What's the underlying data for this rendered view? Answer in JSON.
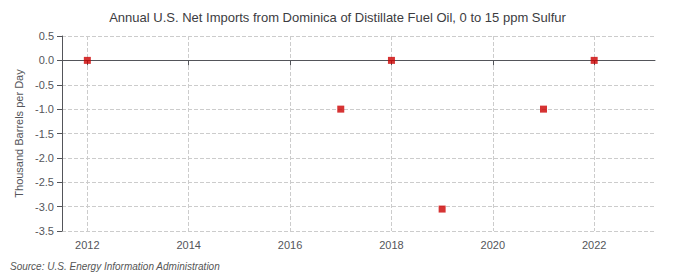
{
  "chart_data": {
    "type": "scatter",
    "title": "Annual U.S. Net Imports from Dominica of Distillate Fuel Oil, 0 to 15 ppm Sulfur",
    "ylabel": "Thousand Barrels per Day",
    "annotations": [
      "Source: U.S. Energy Information Administration"
    ],
    "x": [
      2012,
      2017,
      2018,
      2019,
      2021,
      2022
    ],
    "values": [
      0.0,
      -1.0,
      0.0,
      -3.05,
      -1.0,
      0.0
    ],
    "color": "#CC0000",
    "marker": "square",
    "xlim": [
      2011.5,
      2023.2
    ],
    "xticks": [
      2012,
      2014,
      2016,
      2018,
      2020,
      2022
    ],
    "ylim": [
      -3.5,
      0.5
    ],
    "yticks": [
      0.5,
      {
        "value": 0.0,
        "label": "0.0"
      },
      -0.5,
      {
        "value": -1.0,
        "label": "-1.0"
      },
      -1.5,
      {
        "value": -2.0,
        "label": "-2.0"
      },
      -2.5,
      {
        "value": -3.0,
        "label": "-3.0"
      },
      -3.5
    ],
    "grid": true
  }
}
